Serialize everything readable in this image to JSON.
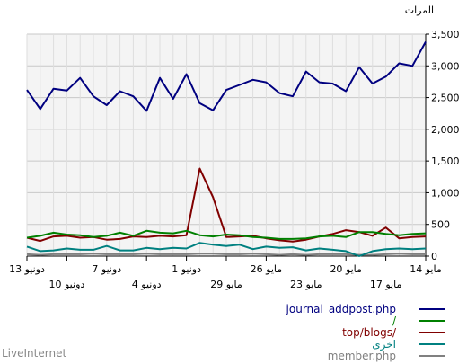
{
  "chart_data": {
    "type": "line",
    "ylabel": "المرات",
    "ylim": [
      0,
      3500
    ],
    "yticks": [
      "0",
      "500",
      "1,000",
      "1,500",
      "2,000",
      "2,500",
      "3,000",
      "3,500"
    ],
    "grid": true,
    "xlabels": [
      {
        "i": 0,
        "row": 1,
        "label": "14 مايو"
      },
      {
        "i": 3,
        "row": 2,
        "label": "17 مايو"
      },
      {
        "i": 6,
        "row": 1,
        "label": "20 مايو"
      },
      {
        "i": 9,
        "row": 2,
        "label": "23 مايو"
      },
      {
        "i": 12,
        "row": 1,
        "label": "26 مايو"
      },
      {
        "i": 15,
        "row": 2,
        "label": "29 مايو"
      },
      {
        "i": 18,
        "row": 1,
        "label": "1 دونيو"
      },
      {
        "i": 21,
        "row": 2,
        "label": "4 دونيو"
      },
      {
        "i": 24,
        "row": 1,
        "label": "7 دونيو"
      },
      {
        "i": 27,
        "row": 2,
        "label": "10 دونيو"
      },
      {
        "i": 30,
        "row": 1,
        "label": "13 دونيو"
      }
    ],
    "series": [
      {
        "name": "journal_addpost.php",
        "color": "#000080",
        "values": [
          3380,
          3000,
          3040,
          2830,
          2720,
          2980,
          2600,
          2720,
          2740,
          2910,
          2520,
          2570,
          2740,
          2780,
          2700,
          2620,
          2300,
          2410,
          2870,
          2480,
          2810,
          2290,
          2520,
          2600,
          2380,
          2520,
          2810,
          2610,
          2640,
          2320,
          2620
        ]
      },
      {
        "name": "/",
        "color": "#008000",
        "values": [
          360,
          350,
          330,
          350,
          380,
          380,
          300,
          320,
          310,
          280,
          270,
          270,
          290,
          300,
          330,
          340,
          310,
          330,
          400,
          360,
          370,
          400,
          320,
          370,
          320,
          300,
          330,
          340,
          370,
          320,
          290
        ]
      },
      {
        "name": "top/blogs/",
        "color": "#800000",
        "values": [
          310,
          300,
          280,
          450,
          320,
          380,
          410,
          350,
          310,
          260,
          230,
          250,
          280,
          320,
          310,
          300,
          930,
          1380,
          330,
          310,
          320,
          300,
          310,
          270,
          260,
          300,
          290,
          320,
          310,
          240,
          290
        ]
      },
      {
        "name": "اخرى",
        "color": "#008080",
        "values": [
          120,
          110,
          120,
          110,
          80,
          0,
          80,
          100,
          120,
          90,
          140,
          130,
          150,
          110,
          180,
          160,
          180,
          210,
          120,
          130,
          110,
          130,
          90,
          90,
          160,
          100,
          100,
          120,
          90,
          80,
          150
        ]
      },
      {
        "name": "member.php",
        "color": "#808080",
        "values": [
          30,
          30,
          40,
          30,
          20,
          20,
          30,
          30,
          30,
          20,
          30,
          20,
          30,
          40,
          30,
          30,
          40,
          40,
          30,
          30,
          30,
          40,
          30,
          30,
          30,
          40,
          30,
          30,
          30,
          20,
          30
        ]
      }
    ]
  },
  "footer": {
    "brand": "LiveInternet"
  }
}
